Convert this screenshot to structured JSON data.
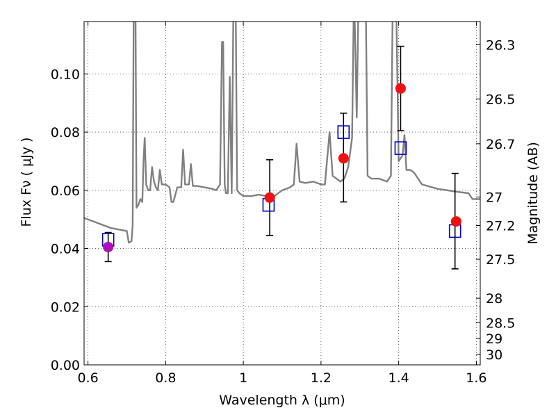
{
  "chart_data": {
    "type": "scatter",
    "title": "",
    "xlabel": "Wavelength  λ (μm)",
    "ylabel": "Flux  Fν  ( μJy )",
    "ylabel_right": "Magnitude (AB)",
    "xlim": [
      0.59,
      1.61
    ],
    "ylim": [
      0.0,
      0.118
    ],
    "grid": true,
    "x_ticks": [
      0.6,
      0.8,
      1.0,
      1.2,
      1.4,
      1.6
    ],
    "x_tick_labels": [
      "0.6",
      "0.8",
      "1",
      "1.2",
      "1.4",
      "1.6"
    ],
    "y_ticks": [
      0.0,
      0.02,
      0.04,
      0.06,
      0.08,
      0.1
    ],
    "y_tick_labels": [
      "0.00",
      "0.02",
      "0.04",
      "0.06",
      "0.08",
      "0.10"
    ],
    "right_ticks": [
      {
        "label": "26.3",
        "flux": 0.11
      },
      {
        "label": "26.5",
        "flux": 0.0914
      },
      {
        "label": "26.7",
        "flux": 0.076
      },
      {
        "label": "27",
        "flux": 0.0577
      },
      {
        "label": "27.2",
        "flux": 0.0479
      },
      {
        "label": "27.5",
        "flux": 0.0363
      },
      {
        "label": "28",
        "flux": 0.0229
      },
      {
        "label": "28.5",
        "flux": 0.0145
      },
      {
        "label": "29",
        "flux": 0.0091
      },
      {
        "label": "30",
        "flux": 0.0036
      }
    ],
    "series": [
      {
        "kind": "line",
        "color": "#808080",
        "points": [
          [
            0.59,
            0.0505
          ],
          [
            0.6,
            0.05
          ],
          [
            0.62,
            0.049
          ],
          [
            0.64,
            0.048
          ],
          [
            0.66,
            0.047
          ],
          [
            0.68,
            0.0465
          ],
          [
            0.7,
            0.046
          ],
          [
            0.705,
            0.042
          ],
          [
            0.712,
            0.0425
          ],
          [
            0.715,
            0.048
          ],
          [
            0.718,
            0.13
          ],
          [
            0.722,
            0.13
          ],
          [
            0.725,
            0.054
          ],
          [
            0.73,
            0.055
          ],
          [
            0.735,
            0.057
          ],
          [
            0.74,
            0.056
          ],
          [
            0.743,
            0.07
          ],
          [
            0.746,
            0.078
          ],
          [
            0.75,
            0.062
          ],
          [
            0.755,
            0.06
          ],
          [
            0.76,
            0.06
          ],
          [
            0.765,
            0.068
          ],
          [
            0.77,
            0.063
          ],
          [
            0.775,
            0.061
          ],
          [
            0.78,
            0.06
          ],
          [
            0.785,
            0.067
          ],
          [
            0.79,
            0.062
          ],
          [
            0.8,
            0.062
          ],
          [
            0.81,
            0.061
          ],
          [
            0.815,
            0.056
          ],
          [
            0.82,
            0.056
          ],
          [
            0.83,
            0.061
          ],
          [
            0.84,
            0.061
          ],
          [
            0.845,
            0.074
          ],
          [
            0.85,
            0.062
          ],
          [
            0.86,
            0.062
          ],
          [
            0.865,
            0.069
          ],
          [
            0.87,
            0.0615
          ],
          [
            0.88,
            0.0615
          ],
          [
            0.9,
            0.061
          ],
          [
            0.92,
            0.0605
          ],
          [
            0.93,
            0.06
          ],
          [
            0.94,
            0.062
          ],
          [
            0.945,
            0.111
          ],
          [
            0.948,
            0.111
          ],
          [
            0.952,
            0.062
          ],
          [
            0.955,
            0.059
          ],
          [
            0.96,
            0.059
          ],
          [
            0.965,
            0.099
          ],
          [
            0.97,
            0.059
          ],
          [
            0.975,
            0.13
          ],
          [
            0.98,
            0.13
          ],
          [
            0.984,
            0.06
          ],
          [
            0.99,
            0.059
          ],
          [
            1.0,
            0.058
          ],
          [
            1.02,
            0.058
          ],
          [
            1.04,
            0.0585
          ],
          [
            1.06,
            0.058
          ],
          [
            1.08,
            0.058
          ],
          [
            1.1,
            0.06
          ],
          [
            1.12,
            0.061
          ],
          [
            1.13,
            0.062
          ],
          [
            1.137,
            0.076
          ],
          [
            1.145,
            0.063
          ],
          [
            1.16,
            0.0625
          ],
          [
            1.18,
            0.063
          ],
          [
            1.2,
            0.062
          ],
          [
            1.21,
            0.062
          ],
          [
            1.222,
            0.08
          ],
          [
            1.23,
            0.065
          ],
          [
            1.24,
            0.064
          ],
          [
            1.25,
            0.063
          ],
          [
            1.26,
            0.064
          ],
          [
            1.27,
            0.068
          ],
          [
            1.28,
            0.078
          ],
          [
            1.285,
            0.13
          ],
          [
            1.292,
            0.085
          ],
          [
            1.297,
            0.13
          ],
          [
            1.305,
            0.13
          ],
          [
            1.315,
            0.13
          ],
          [
            1.32,
            0.065
          ],
          [
            1.33,
            0.064
          ],
          [
            1.35,
            0.064
          ],
          [
            1.37,
            0.063
          ],
          [
            1.38,
            0.065
          ],
          [
            1.385,
            0.13
          ],
          [
            1.393,
            0.13
          ],
          [
            1.4,
            0.07
          ],
          [
            1.41,
            0.072
          ],
          [
            1.415,
            0.079
          ],
          [
            1.42,
            0.067
          ],
          [
            1.43,
            0.067
          ],
          [
            1.44,
            0.066
          ],
          [
            1.46,
            0.062
          ],
          [
            1.5,
            0.0605
          ],
          [
            1.55,
            0.0595
          ],
          [
            1.58,
            0.059
          ],
          [
            1.59,
            0.057
          ],
          [
            1.61,
            0.057
          ]
        ]
      },
      {
        "kind": "open-square",
        "color": "#0000cc",
        "points": [
          [
            0.652,
            0.043
          ],
          [
            1.065,
            0.055
          ],
          [
            1.258,
            0.08
          ],
          [
            1.405,
            0.0745
          ],
          [
            1.545,
            0.046
          ]
        ]
      },
      {
        "kind": "errorbar",
        "color": "#000000",
        "points": [
          {
            "x": 0.652,
            "y": 0.0405,
            "lo": 0.0355,
            "hi": 0.0455
          },
          {
            "x": 1.068,
            "y": 0.0575,
            "lo": 0.0445,
            "hi": 0.0705
          },
          {
            "x": 1.258,
            "y": 0.071,
            "lo": 0.056,
            "hi": 0.0865
          },
          {
            "x": 1.405,
            "y": 0.095,
            "lo": 0.0805,
            "hi": 0.1095
          },
          {
            "x": 1.545,
            "y": 0.0493,
            "lo": 0.033,
            "hi": 0.0658
          }
        ]
      },
      {
        "kind": "filled-circle",
        "color": "#ee1111",
        "points": [
          [
            1.068,
            0.0575
          ],
          [
            1.258,
            0.071
          ],
          [
            1.405,
            0.095
          ],
          [
            1.548,
            0.0493
          ]
        ]
      },
      {
        "kind": "filled-circle",
        "color": "#aa11bb",
        "points": [
          [
            0.652,
            0.0405
          ]
        ]
      }
    ]
  }
}
